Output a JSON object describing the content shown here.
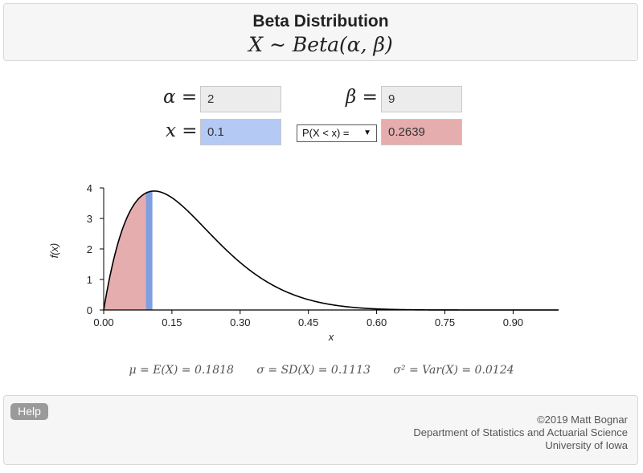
{
  "header": {
    "title": "Beta Distribution",
    "formula_lhs": "X",
    "formula_op": "∼",
    "formula_rhs": "Beta(α, β)"
  },
  "params": {
    "alpha_label": "α",
    "alpha_value": "2",
    "beta_label": "β",
    "beta_value": "9",
    "x_label": "x",
    "x_value": "0.1",
    "equals": "=",
    "prob_select": "P(X < x) =",
    "prob_result": "0.2639"
  },
  "chart_data": {
    "type": "area",
    "distribution": "beta",
    "alpha": 2,
    "beta": 9,
    "x_marker": 0.1,
    "shaded_region": "x < 0.1",
    "xlim": [
      0,
      1
    ],
    "ylim": [
      0,
      4
    ],
    "xticks": [
      "0.00",
      "0.15",
      "0.30",
      "0.45",
      "0.60",
      "0.75",
      "0.90"
    ],
    "yticks": [
      "0",
      "1",
      "2",
      "3",
      "4"
    ],
    "xlabel": "x",
    "ylabel": "f(x)",
    "colors": {
      "curve": "#000000",
      "shade": "#e6adae",
      "marker": "#7f9fe0"
    }
  },
  "moments": {
    "mean": "μ = E(X) = 0.1818",
    "sd": "σ = SD(X) = 0.1113",
    "var": "σ² = Var(X) = 0.0124"
  },
  "footer": {
    "help_label": "Help",
    "credit_line1": "©2019 Matt Bognar",
    "credit_line2": "Department of Statistics and Actuarial Science",
    "credit_line3": "University of Iowa"
  }
}
